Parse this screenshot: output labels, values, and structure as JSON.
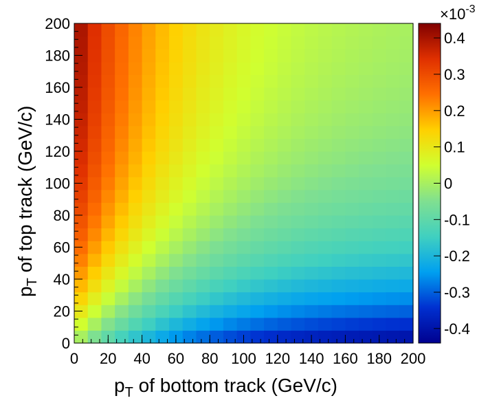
{
  "chart_data": {
    "type": "heatmap",
    "title": "",
    "xlabel_main": "p",
    "xlabel_sub": "T",
    "xlabel_rest": " of bottom track (GeV/c)",
    "ylabel_main": "p",
    "ylabel_sub": "T",
    "ylabel_rest": " of top track (GeV/c)",
    "xlim": [
      0,
      200
    ],
    "ylim": [
      0,
      200
    ],
    "bins": 25,
    "x_ticks": [
      "0",
      "20",
      "40",
      "60",
      "80",
      "100",
      "120",
      "140",
      "160",
      "180",
      "200"
    ],
    "y_ticks": [
      "0",
      "20",
      "40",
      "60",
      "80",
      "100",
      "120",
      "140",
      "160",
      "180",
      "200"
    ],
    "z_range": [
      -0.44,
      0.44
    ],
    "colorbar_multiplier": "×10",
    "colorbar_exponent": "-3",
    "colorbar_ticks": [
      "0.4",
      "0.3",
      "0.2",
      "0.1",
      "0",
      "-0.1",
      "-0.2",
      "-0.3",
      "-0.4"
    ],
    "colorbar_tick_values": [
      0.4,
      0.3,
      0.2,
      0.1,
      0,
      -0.1,
      -0.2,
      -0.3,
      -0.4
    ],
    "z_model_note": "value = 0.44e-3 * (s(y) - s(x)), s(v) = 1 - exp(-v/60)",
    "colormap": [
      "#00008f",
      "#0030d0",
      "#00a0f0",
      "#40d0c0",
      "#80e090",
      "#d0ff30",
      "#ffd000",
      "#ff7000",
      "#e03000",
      "#800000"
    ],
    "grid": false,
    "legend": "colorbar-right"
  }
}
